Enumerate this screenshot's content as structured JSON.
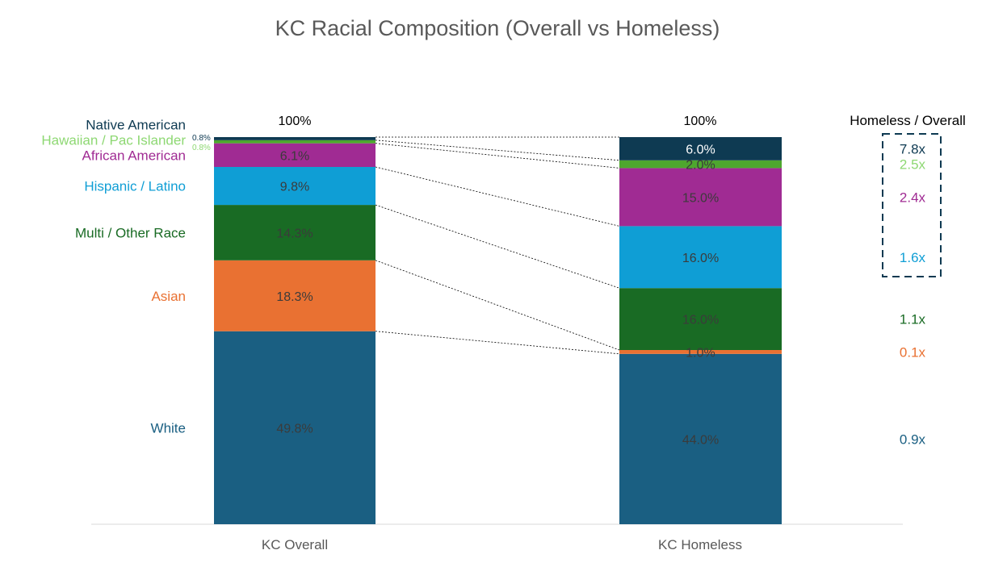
{
  "chart_data": {
    "type": "bar",
    "stacked": true,
    "title": "KC Racial Composition (Overall vs Homeless)",
    "categories": [
      "KC Overall",
      "KC Homeless"
    ],
    "totals": [
      "100%",
      "100%"
    ],
    "series": [
      {
        "name": "White",
        "values": [
          49.8,
          44.0
        ],
        "labels": [
          "49.8%",
          "44.0%"
        ],
        "color": "#1A5F82",
        "label_color": "#3B3B3B",
        "ratio": "0.9x"
      },
      {
        "name": "Asian",
        "values": [
          18.3,
          1.0
        ],
        "labels": [
          "18.3%",
          "1.0%"
        ],
        "color": "#E97132",
        "label_color": "#3B3B3B",
        "ratio": "0.1x"
      },
      {
        "name": "Multi / Other Race",
        "values": [
          14.3,
          16.0
        ],
        "labels": [
          "14.3%",
          "16.0%"
        ],
        "color": "#196B24",
        "label_color": "#3B3B3B",
        "ratio": "1.1x"
      },
      {
        "name": "Hispanic / Latino",
        "values": [
          9.8,
          16.0
        ],
        "labels": [
          "9.8%",
          "16.0%"
        ],
        "color": "#0F9ED5",
        "label_color": "#3B3B3B",
        "ratio": "1.6x"
      },
      {
        "name": "African American",
        "values": [
          6.1,
          15.0
        ],
        "labels": [
          "6.1%",
          "15.0%"
        ],
        "color": "#A02B93",
        "label_color": "#3B3B3B",
        "ratio": "2.4x"
      },
      {
        "name": "Hawaiian / Pac Islander",
        "values": [
          0.8,
          2.0
        ],
        "labels": [
          "0.8%",
          "2.0%"
        ],
        "color": "#4EA72E",
        "label_color": "#3B3B3B",
        "ratio": "2.5x",
        "name_color": "#8ED873"
      },
      {
        "name": "Native American",
        "values": [
          0.8,
          6.0
        ],
        "labels": [
          "0.8%",
          "6.0%"
        ],
        "color": "#0E3A52",
        "label_color": "#FFFFFF",
        "ratio": "7.8x"
      }
    ],
    "ratio_header": "Homeless / Overall",
    "ylim": [
      0,
      100
    ],
    "highlight": "dashed box around the four highest ratios",
    "connector_lines": "dotted lines joining segment boundaries of the two bars"
  }
}
